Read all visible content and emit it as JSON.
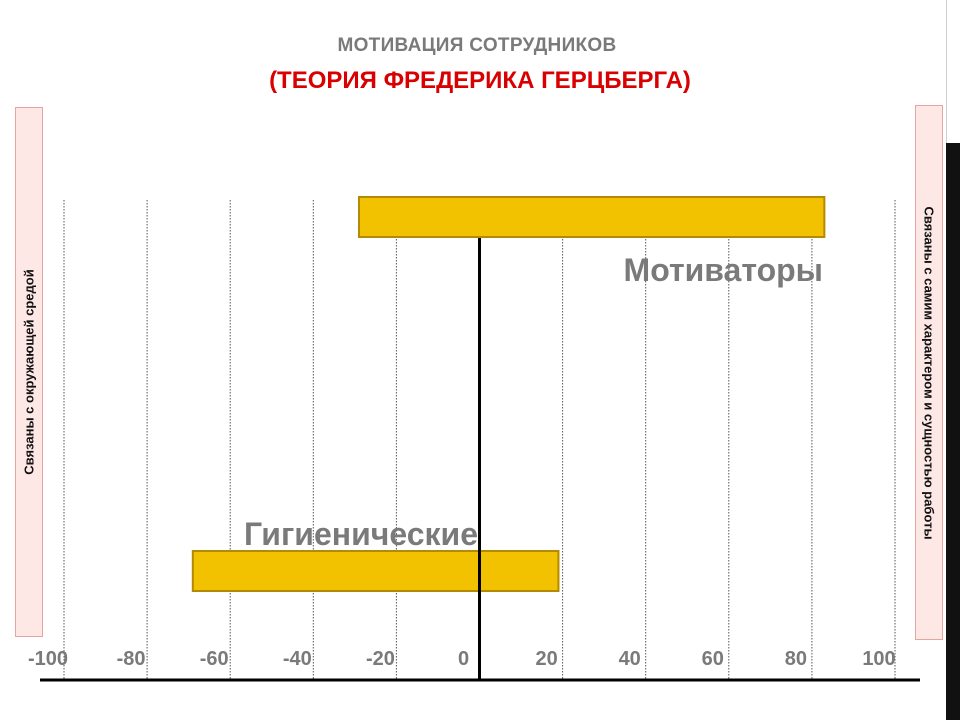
{
  "slide": {
    "title": "МОТИВАЦИЯ СОТРУДНИКОВ",
    "subtitle": "(ТЕОРИЯ ФРЕДЕРИКА ГЕРЦБЕРГА)",
    "left_label": "Связаны с окружающей средой",
    "right_label": "Связаны с самим характером и сущностью работы"
  },
  "colors": {
    "bar_fill": "#f2c200",
    "bar_stroke": "#b38a00",
    "title": "#7a7a7a",
    "subtitle": "#d80000"
  },
  "chart_data": {
    "type": "bar",
    "orientation": "horizontal",
    "xlim": [
      -100,
      100
    ],
    "x_ticks": [
      "-100",
      "-80",
      "-60",
      "-40",
      "-20",
      "0",
      "20",
      "40",
      "60",
      "80",
      "100"
    ],
    "grid": "vertical",
    "bars": [
      {
        "label": "Мотиваторы",
        "start": -29,
        "end": 83
      },
      {
        "label": "Гигиенические",
        "start": -69,
        "end": 19
      }
    ]
  }
}
